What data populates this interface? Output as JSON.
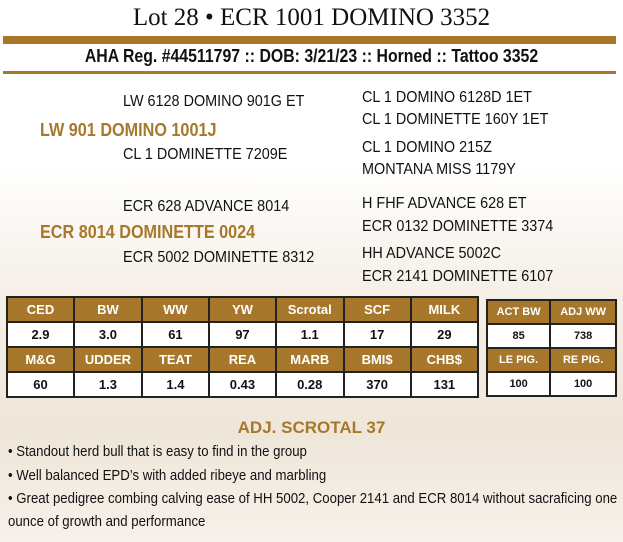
{
  "title": "Lot 28 • ECR 1001 DOMINO 3352",
  "registration": "AHA Reg. #44511797 :: DOB: 3/21/23 :: Horned :: Tattoo 3352",
  "pedigree": {
    "sire": "LW 901 DOMINO 1001J",
    "sire_sire": "LW 6128 DOMINO 901G ET",
    "sire_dam": "CL 1 DOMINETTE 7209E",
    "sire_sire_sire": "CL 1 DOMINO 6128D 1ET",
    "sire_sire_dam": "CL 1 DOMINETTE 160Y 1ET",
    "sire_dam_sire": "CL 1 DOMINO 215Z",
    "sire_dam_dam": "MONTANA MISS 1179Y",
    "dam": "ECR 8014 DOMINETTE 0024",
    "dam_sire": "ECR 628 ADVANCE 8014",
    "dam_dam": "ECR 5002 DOMINETTE 8312",
    "dam_sire_sire": "H FHF ADVANCE 628 ET",
    "dam_sire_dam": "ECR 0132 DOMINETTE 3374",
    "dam_dam_sire": "HH ADVANCE 5002C",
    "dam_dam_dam": "ECR 2141 DOMINETTE 6107"
  },
  "epd": {
    "headers1": [
      "CED",
      "BW",
      "WW",
      "YW",
      "Scrotal",
      "SCF",
      "MILK"
    ],
    "values1": [
      "2.9",
      "3.0",
      "61",
      "97",
      "1.1",
      "17",
      "29"
    ],
    "headers2": [
      "M&G",
      "UDDER",
      "TEAT",
      "REA",
      "MARB",
      "BMI$",
      "CHB$"
    ],
    "values2": [
      "60",
      "1.3",
      "1.4",
      "0.43",
      "0.28",
      "370",
      "131"
    ]
  },
  "performance": {
    "headers1": [
      "ACT BW",
      "ADJ WW"
    ],
    "values1": [
      "85",
      "738"
    ],
    "headers2": [
      "LE PIG.",
      "RE PIG."
    ],
    "values2": [
      "100",
      "100"
    ]
  },
  "adj_scrotal": "ADJ. SCROTAL 37",
  "bullets": [
    "• Standout herd bull that is easy to find in the group",
    "• Well balanced EPD’s with added ribeye and marbling",
    "• Great pedigree combing calving ease of HH 5002, Cooper 2141 and ECR 8014 without sacraficing one",
    "ounce of growth and performance"
  ],
  "colors": {
    "accent": "#a7782c"
  }
}
